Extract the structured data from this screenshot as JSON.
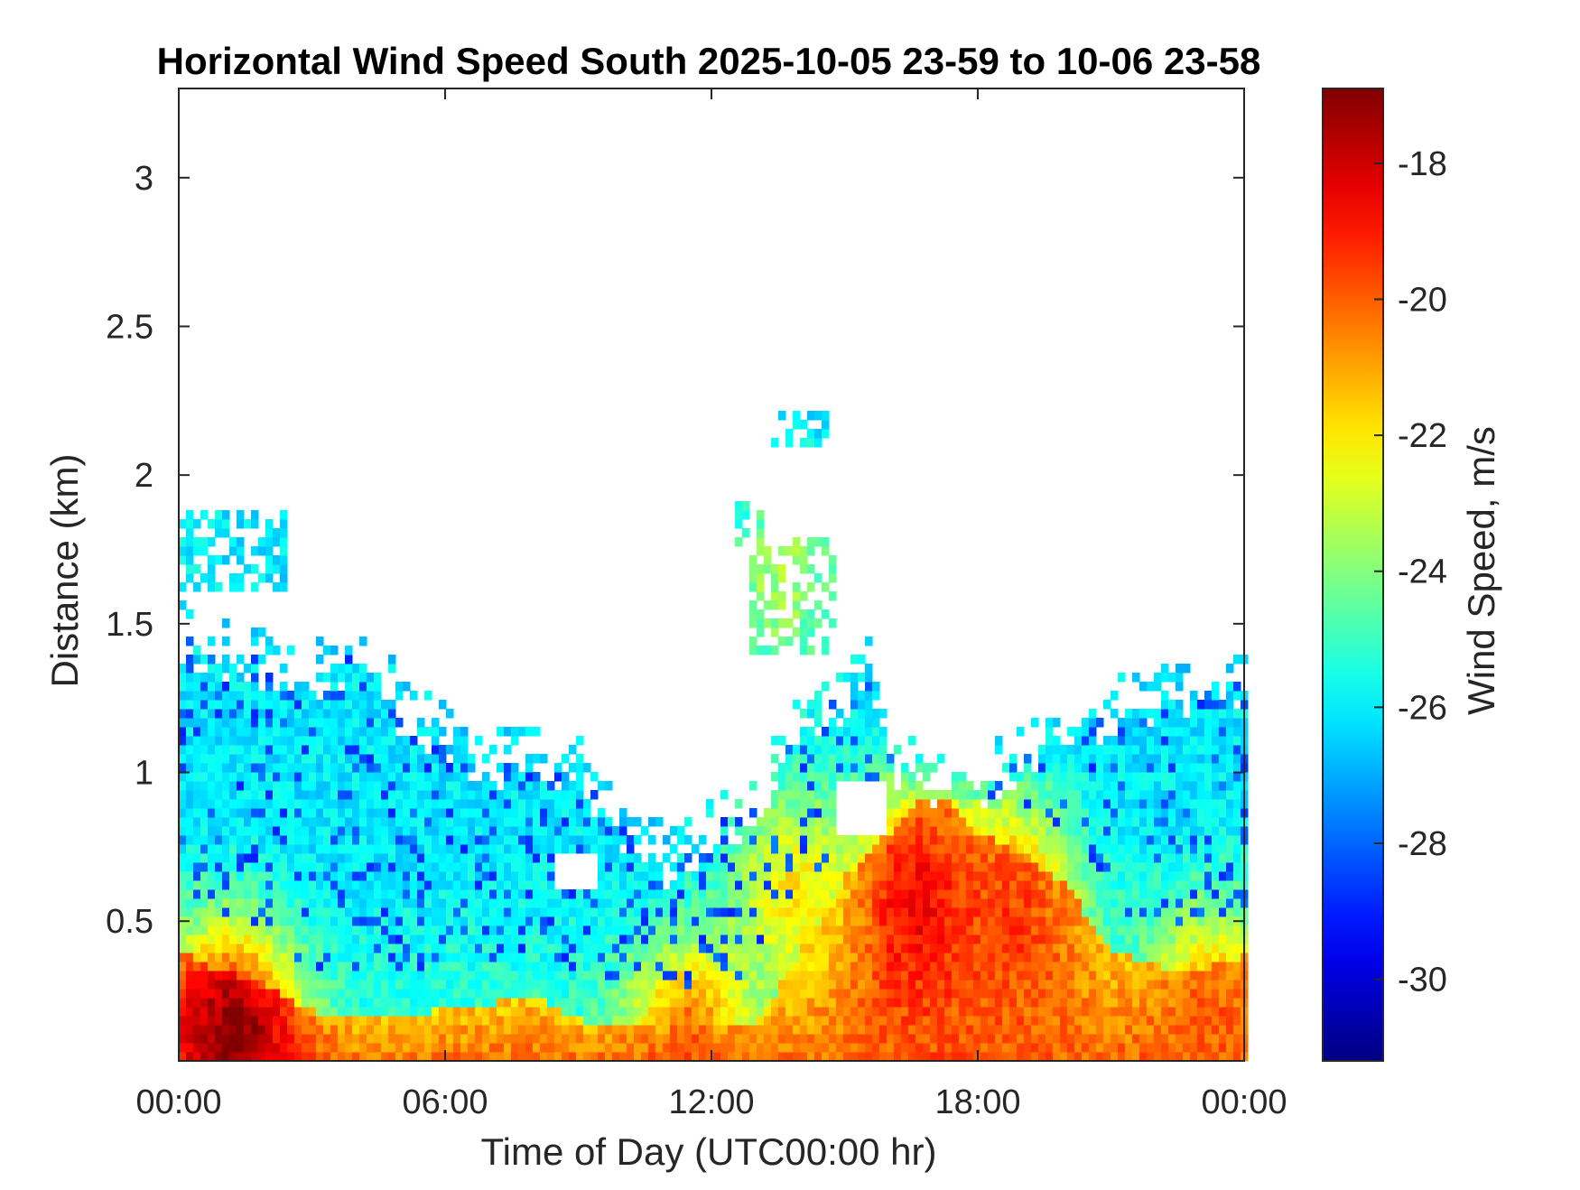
{
  "chart_data": {
    "type": "heatmap",
    "title": "Horizontal Wind Speed South 2025-10-05 23-59 to 10-06 23-58",
    "xlabel": "Time of Day (UTC00:00 hr)",
    "ylabel": "Distance (km)",
    "colorbar_label": "Wind Speed, m/s",
    "colormap": "jet",
    "x_unit": "hours UTC",
    "xlim": [
      0,
      24
    ],
    "ylim": [
      0.03,
      3.3
    ],
    "clim": [
      -31.2,
      -16.9
    ],
    "x_ticks": [
      {
        "value": 0,
        "label": "00:00"
      },
      {
        "value": 6,
        "label": "06:00"
      },
      {
        "value": 12,
        "label": "12:00"
      },
      {
        "value": 18,
        "label": "18:00"
      },
      {
        "value": 24,
        "label": "00:00"
      }
    ],
    "y_ticks": [
      {
        "value": 0.5,
        "label": "0.5"
      },
      {
        "value": 1,
        "label": "1"
      },
      {
        "value": 1.5,
        "label": "1.5"
      },
      {
        "value": 2,
        "label": "2"
      },
      {
        "value": 2.5,
        "label": "2.5"
      },
      {
        "value": 3,
        "label": "3"
      }
    ],
    "colorbar_ticks": [
      {
        "value": -18,
        "label": "-18"
      },
      {
        "value": -20,
        "label": "-20"
      },
      {
        "value": -22,
        "label": "-22"
      },
      {
        "value": -24,
        "label": "-24"
      },
      {
        "value": -26,
        "label": "-26"
      },
      {
        "value": -28,
        "label": "-28"
      },
      {
        "value": -30,
        "label": "-30"
      }
    ],
    "data_top_km": [
      [
        0,
        1.45
      ],
      [
        1,
        1.4
      ],
      [
        2,
        1.35
      ],
      [
        3,
        1.32
      ],
      [
        4,
        1.38
      ],
      [
        4.5,
        1.36
      ],
      [
        5,
        1.2
      ],
      [
        6,
        1.12
      ],
      [
        7,
        1.02
      ],
      [
        8,
        1.05
      ],
      [
        9,
        1.0
      ],
      [
        10,
        0.8
      ],
      [
        11,
        0.7
      ],
      [
        12,
        0.78
      ],
      [
        13,
        0.9
      ],
      [
        14,
        1.15
      ],
      [
        15,
        1.25
      ],
      [
        15.6,
        1.35
      ],
      [
        16,
        1.05
      ],
      [
        17,
        0.95
      ],
      [
        18,
        0.95
      ],
      [
        19,
        1.05
      ],
      [
        20,
        1.15
      ],
      [
        21,
        1.2
      ],
      [
        22,
        1.25
      ],
      [
        23,
        1.28
      ],
      [
        24,
        1.28
      ]
    ],
    "gap_regions_km": [
      {
        "x": [
          14.8,
          16.0
        ],
        "y": [
          0.8,
          0.97
        ]
      },
      {
        "x": [
          8.5,
          9.5
        ],
        "y": [
          0.62,
          0.72
        ]
      }
    ],
    "surface_layer_top_km": [
      [
        0,
        0.4
      ],
      [
        1,
        0.33
      ],
      [
        2,
        0.28
      ],
      [
        3,
        0.2
      ],
      [
        4,
        0.18
      ],
      [
        6,
        0.2
      ],
      [
        8,
        0.25
      ],
      [
        9,
        0.17
      ],
      [
        10,
        0.15
      ],
      [
        11,
        0.13
      ],
      [
        12,
        0.13
      ],
      [
        13,
        0.15
      ],
      [
        14,
        0.4
      ],
      [
        15,
        0.65
      ],
      [
        16,
        0.8
      ],
      [
        17,
        0.95
      ],
      [
        18,
        0.8
      ],
      [
        19,
        0.72
      ],
      [
        20,
        0.62
      ],
      [
        21,
        0.4
      ],
      [
        22,
        0.35
      ],
      [
        23,
        0.34
      ],
      [
        24,
        0.38
      ]
    ],
    "speed_features": [
      {
        "x": 1.2,
        "y": 0.1,
        "value": -17.0
      },
      {
        "x": 16.6,
        "y": 0.55,
        "value": -18.5
      },
      {
        "x": 18.7,
        "y": 0.5,
        "value": -19.5
      },
      {
        "x": 23.3,
        "y": 0.15,
        "value": -20.0
      },
      {
        "x": 11.5,
        "y": 0.08,
        "value": -20.0
      },
      {
        "x": 13.8,
        "y": 0.6,
        "value": -22.0
      },
      {
        "x": 13.6,
        "y": 1.65,
        "value": -23.5
      },
      {
        "x": 0.3,
        "y": 1.72,
        "value": -26.0
      }
    ],
    "upper_patches_km": [
      {
        "x": [
          0,
          2.5
        ],
        "y": [
          1.62,
          1.88
        ]
      },
      {
        "x": [
          12.8,
          14.8
        ],
        "y": [
          1.4,
          1.78
        ]
      },
      {
        "x": [
          12.6,
          13.1
        ],
        "y": [
          1.75,
          1.92
        ]
      },
      {
        "x": [
          13.4,
          14.6
        ],
        "y": [
          2.1,
          2.22
        ]
      }
    ]
  }
}
